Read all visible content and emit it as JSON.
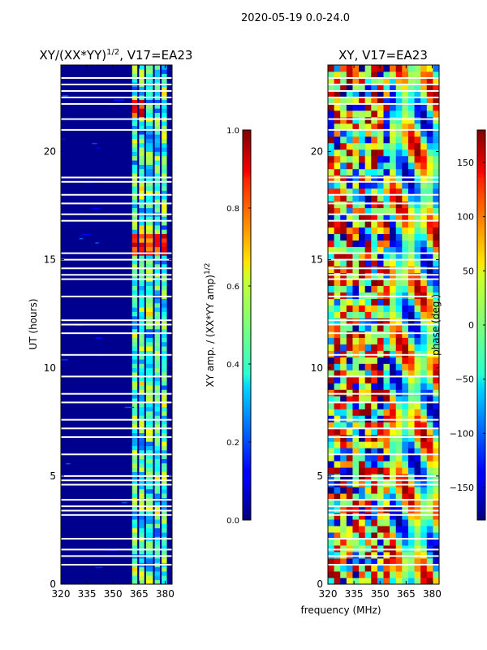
{
  "suptitle": "2020-05-19 0.0-24.0",
  "xlabel_shared": "frequency (MHz)",
  "chart_data": [
    {
      "type": "heatmap",
      "title_main": "XY/(XX*YY)",
      "title_sup": "1/2",
      "title_tail": ", V17=EA23",
      "ylabel": "UT (hours)",
      "xlim": [
        320,
        384
      ],
      "ylim": [
        0,
        24
      ],
      "xticks": [
        "320",
        "335",
        "350",
        "365",
        "380"
      ],
      "xtick_values": [
        320,
        335,
        350,
        365,
        380
      ],
      "yticks": [
        "0",
        "5",
        "10",
        "15",
        "20"
      ],
      "ytick_values": [
        0,
        5,
        10,
        15,
        20
      ],
      "colorbar": {
        "label_main": "XY amp. / (XX*YY amp)",
        "label_sup": "1/2",
        "range": [
          0.0,
          1.0
        ],
        "ticks": [
          "0.0",
          "0.2",
          "0.4",
          "0.6",
          "0.8",
          "1.0"
        ],
        "tick_values": [
          0.0,
          0.2,
          0.4,
          0.6,
          0.8,
          1.0
        ]
      },
      "bright_bands_mhz": [
        [
          361,
          364
        ],
        [
          365,
          368
        ],
        [
          369,
          373
        ],
        [
          374,
          377
        ],
        [
          378,
          381
        ]
      ],
      "flagged_hours": [
        0.9,
        1.3,
        1.6,
        2.1,
        3.2,
        3.4,
        3.6,
        3.9,
        4.6,
        4.8,
        5.0,
        6.0,
        6.8,
        7.2,
        7.6,
        8.4,
        8.8,
        9.6,
        10.6,
        11.6,
        12.0,
        12.2,
        13.3,
        14.1,
        14.3,
        14.6,
        15.0,
        15.3,
        16.8,
        17.1,
        17.6,
        18.0,
        18.6,
        18.8,
        21.0,
        21.5,
        22.2,
        22.5,
        22.8,
        23.1,
        23.4
      ]
    },
    {
      "type": "heatmap",
      "title": "XY, V17=EA23",
      "xlim": [
        320,
        384
      ],
      "ylim": [
        0,
        24
      ],
      "xticks": [
        "320",
        "335",
        "350",
        "365",
        "380"
      ],
      "xtick_values": [
        320,
        335,
        350,
        365,
        380
      ],
      "yticks": [
        "0",
        "5",
        "10",
        "15",
        "20"
      ],
      "ytick_values": [
        0,
        5,
        10,
        15,
        20
      ],
      "colorbar": {
        "label": "phase (deg.)",
        "range": [
          -180,
          180
        ],
        "ticks": [
          "−150",
          "−100",
          "−50",
          "0",
          "50",
          "100",
          "150"
        ],
        "tick_values": [
          -150,
          -100,
          -50,
          0,
          50,
          100,
          150
        ]
      },
      "flagged_hours": [
        0.9,
        1.3,
        1.6,
        2.1,
        3.2,
        3.4,
        3.6,
        3.9,
        4.6,
        4.8,
        5.0,
        6.0,
        6.8,
        7.2,
        7.6,
        8.4,
        8.8,
        9.6,
        10.6,
        11.6,
        12.0,
        12.2,
        13.3,
        14.1,
        14.3,
        14.6,
        15.0,
        15.3,
        16.8,
        17.1,
        17.6,
        18.0,
        18.6,
        18.8,
        21.0,
        21.5,
        22.2,
        22.5,
        22.8,
        23.1,
        23.4
      ]
    }
  ]
}
